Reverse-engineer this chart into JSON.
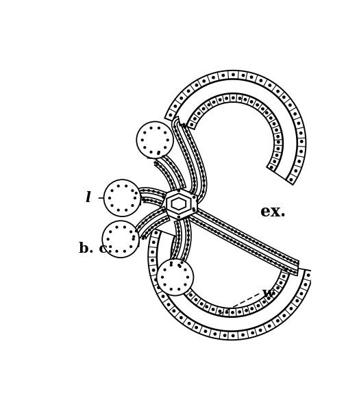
{
  "background_color": "#ffffff",
  "line_color": "#000000",
  "label_l": "l",
  "label_bc": "b. c.",
  "label_ex": "ex.",
  "label_w": "w",
  "fig_width": 5.06,
  "fig_height": 6.0,
  "dpi": 100
}
